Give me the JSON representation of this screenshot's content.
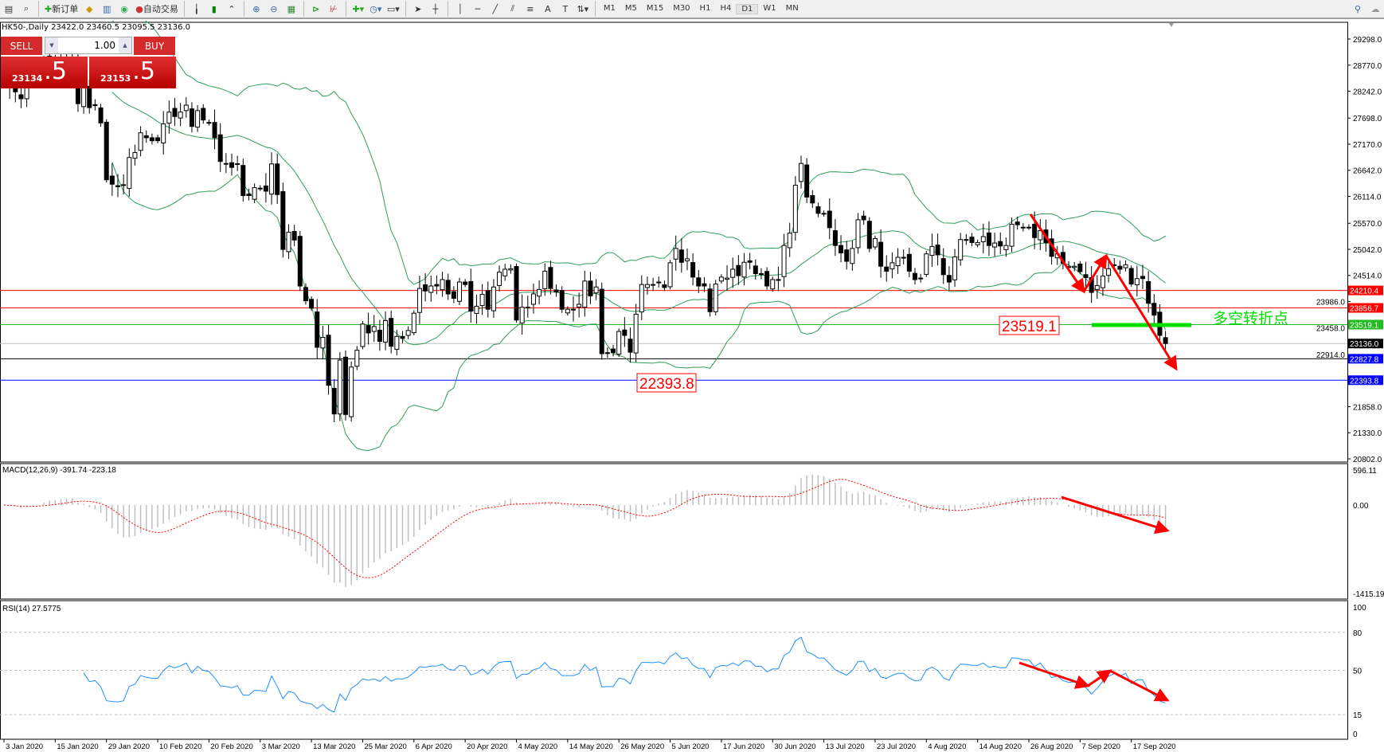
{
  "toolbar": {
    "new_order": "新订单",
    "auto_trading": "自动交易",
    "timeframes": [
      "M1",
      "M5",
      "M15",
      "M30",
      "H1",
      "H4",
      "D1",
      "W1",
      "MN"
    ],
    "active_timeframe": "D1"
  },
  "symbol_info": "HK50-,Daily  23422.0 23460.5 23095.5 23136.0",
  "trade_panel": {
    "sell_label": "SELL",
    "buy_label": "BUY",
    "lot": "1.00",
    "sell_price_main": "23134",
    "sell_price_big": ".5",
    "buy_price_main": "23153",
    "buy_price_big": ".5"
  },
  "colors": {
    "bull_band": "#2e9e5a",
    "up_arrow": "#ff0000",
    "green_level": "#00e000",
    "macd_signal": "#ff0000",
    "rsi": "#1e90ff"
  },
  "price_axis": [
    "29298.0",
    "28770.0",
    "28242.0",
    "27698.0",
    "27170.0",
    "26642.0",
    "26114.0",
    "25570.0",
    "25042.0",
    "24514.0",
    "23986.0",
    "23458.0",
    "22914.0",
    "21858.0",
    "21330.0",
    "20802.0"
  ],
  "levels": [
    {
      "value": "24210.4",
      "color": "#ff0000"
    },
    {
      "value": "23856.7",
      "color": "#ff0000"
    },
    {
      "value": "23519.1",
      "color": "#22bb22"
    },
    {
      "value": "23136.0",
      "color": "#000000",
      "line": "#c0c0c0"
    },
    {
      "value": "22827.8",
      "color": "#0000ff",
      "line": "#000000"
    },
    {
      "value": "22393.8",
      "color": "#0000ff"
    }
  ],
  "annotations": {
    "box1": "23519.1",
    "box2": "22393.8",
    "turning_point": "多空转折点"
  },
  "macd": {
    "label": "MACD(12,26,9) -391.74 -223.18",
    "axis": [
      "596.11",
      "0.00",
      "-1415.19"
    ]
  },
  "rsi": {
    "label": "RSI(14) 27.5775",
    "axis": [
      "100",
      "80",
      "50",
      "15",
      "0"
    ]
  },
  "chart_data": {
    "type": "candlestick",
    "symbol": "HK50-",
    "timeframe": "Daily",
    "x_labels": [
      "3 Jan 2020",
      "15 Jan 2020",
      "29 Jan 2020",
      "10 Feb 2020",
      "20 Feb 2020",
      "3 Mar 2020",
      "13 Mar 2020",
      "25 Mar 2020",
      "6 Apr 2020",
      "20 Apr 2020",
      "4 May 2020",
      "14 May 2020",
      "26 May 2020",
      "5 Jun 2020",
      "17 Jun 2020",
      "30 Jun 2020",
      "13 Jul 2020",
      "23 Jul 2020",
      "4 Aug 2020",
      "14 Aug 2020",
      "26 Aug 2020",
      "7 Sep 2020",
      "17 Sep 2020"
    ],
    "ylim": [
      20802,
      29298
    ],
    "closes": [
      28450,
      28320,
      28230,
      28090,
      28560,
      28560,
      28640,
      28850,
      28950,
      28770,
      28880,
      28800,
      28790,
      27990,
      28340,
      27910,
      27950,
      27600,
      26450,
      26360,
      26310,
      26350,
      26900,
      27000,
      27400,
      27300,
      27240,
      27240,
      27580,
      27820,
      27730,
      27820,
      27960,
      27530,
      27850,
      27660,
      27610,
      27300,
      26820,
      26780,
      26700,
      26770,
      26130,
      26130,
      26290,
      26280,
      26220,
      26770,
      26150,
      25040,
      25390,
      25230,
      24300,
      24000,
      23850,
      23060,
      23260,
      22290,
      21710,
      22800,
      21700,
      22660,
      23000,
      23530,
      23350,
      23480,
      23180,
      23600,
      23080,
      23280,
      23240,
      23400,
      23750,
      24250,
      24200,
      24300,
      24300,
      24430,
      24140,
      24050,
      24380,
      24330,
      23790,
      23890,
      24130,
      23830,
      24280,
      24580,
      24640,
      24650,
      23610,
      23870,
      23870,
      24140,
      24230,
      24600,
      24250,
      24180,
      23830,
      23830,
      23830,
      23930,
      24400,
      24100,
      24280,
      22930,
      22950,
      22950,
      23380,
      23300,
      22960,
      23730,
      24330,
      24330,
      24320,
      24370,
      24270,
      24770,
      25060,
      24780,
      24850,
      24480,
      24300,
      24300,
      23780,
      24340,
      24480,
      24460,
      24640,
      24510,
      24780,
      24780,
      24550,
      24550,
      24300,
      24430,
      24430,
      25120,
      25370,
      26340,
      26780,
      26100,
      25980,
      25770,
      25770,
      25480,
      25120,
      24970,
      24800,
      25060,
      25640,
      25640,
      25060,
      25260,
      24700,
      24600,
      24770,
      24880,
      24880,
      24600,
      24430,
      24460,
      24950,
      25100,
      24930,
      24530,
      24380,
      24890,
      25240,
      25230,
      25180,
      25180,
      25300,
      25120,
      25170,
      25110,
      25120,
      25550,
      25540,
      25490,
      25490,
      25280,
      25420,
      25180,
      24900,
      24950,
      24760,
      24690,
      24700,
      24590,
      24470,
      24170,
      24310,
      24500,
      24650,
      24730,
      24640,
      24730,
      24340,
      24450,
      24450,
      23950,
      23710,
      23300,
      23136
    ],
    "indicators": [
      "Bollinger Bands",
      "MACD(12,26,9)",
      "RSI(14)"
    ]
  }
}
